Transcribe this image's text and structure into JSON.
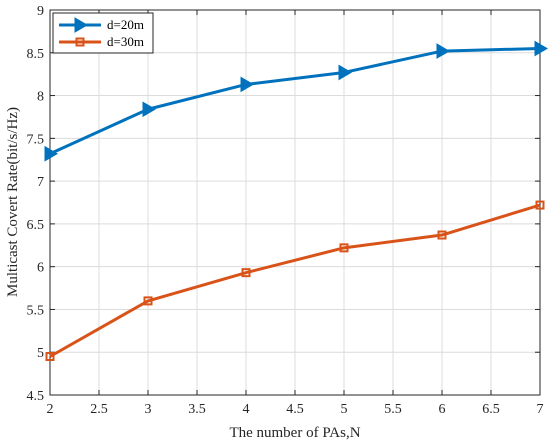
{
  "chart_data": {
    "type": "line",
    "xlabel": "The number of PAs,N",
    "ylabel": "Multicast Covert Rate(bit/s/Hz)",
    "xlim": [
      2,
      7
    ],
    "ylim": [
      4.5,
      9
    ],
    "x_ticks": [
      2,
      2.5,
      3,
      3.5,
      4,
      4.5,
      5,
      5.5,
      6,
      6.5,
      7
    ],
    "y_ticks": [
      4.5,
      5,
      5.5,
      6,
      6.5,
      7,
      7.5,
      8,
      8.5,
      9
    ],
    "grid": true,
    "legend_position": "top-left",
    "x": [
      2,
      3,
      4,
      5,
      6,
      7
    ],
    "series": [
      {
        "name": "d=20m",
        "color": "#0072BD",
        "marker": "triangle-right",
        "values": [
          7.32,
          7.84,
          8.13,
          8.27,
          8.52,
          8.55
        ]
      },
      {
        "name": "d=30m",
        "color": "#D95319",
        "marker": "square",
        "values": [
          4.95,
          5.6,
          5.93,
          6.22,
          6.37,
          6.72
        ]
      }
    ]
  }
}
